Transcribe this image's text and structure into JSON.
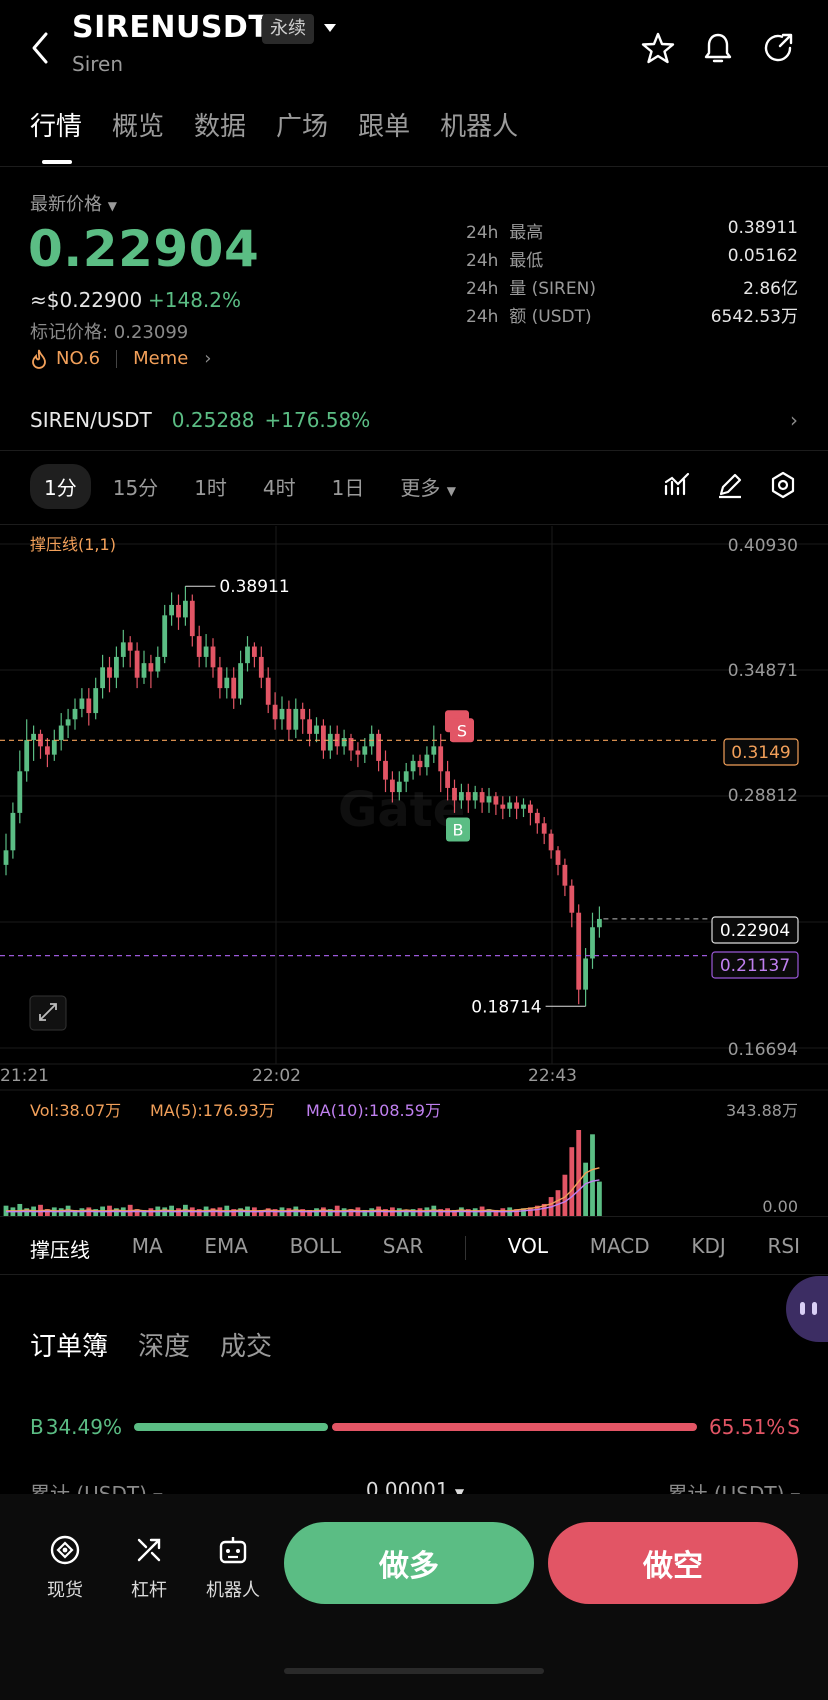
{
  "header": {
    "title": "SIRENUSDT",
    "contract_tag": "永续",
    "subtitle": "Siren",
    "icons": [
      "back-icon",
      "star-icon",
      "bell-icon",
      "share-icon"
    ]
  },
  "tabs": [
    "行情",
    "概览",
    "数据",
    "广场",
    "跟单",
    "机器人"
  ],
  "price": {
    "latest_label": "最新价格",
    "last": "0.22904",
    "usd": "≈$0.22900",
    "change": "+148.2%",
    "mark": "标记价格: 0.23099",
    "rank": "NO.6",
    "sector": "Meme"
  },
  "stats": [
    {
      "period": "24h",
      "label": "最高",
      "value": "0.38911"
    },
    {
      "period": "24h",
      "label": "最低",
      "value": "0.05162"
    },
    {
      "period": "24h",
      "label": "量 (SIREN)",
      "value": "2.86亿"
    },
    {
      "period": "24h",
      "label": "额 (USDT)",
      "value": "6542.53万"
    }
  ],
  "spot": {
    "pair": "SIREN/USDT",
    "price": "0.25288",
    "change": "+176.58%"
  },
  "intervals": [
    "1分",
    "15分",
    "1时",
    "4时",
    "1日",
    "更多"
  ],
  "active_interval": "1分",
  "chart_data": {
    "type": "candlestick",
    "indicator_label": "撑压线(1,1)",
    "y_ticks": [
      "0.40930",
      "0.34871",
      "0.28812",
      "0.16694"
    ],
    "x_ticks": [
      "21:21",
      "22:02",
      "22:43"
    ],
    "ylim": [
      0.16694,
      0.4093
    ],
    "high_label": "0.38911",
    "low_label": "0.18714",
    "resistance": "0.3149",
    "last_price_tag": "0.22904",
    "support": "0.21137",
    "markers": [
      "S",
      "B"
    ],
    "candles": [
      [
        0.255,
        0.262,
        0.25,
        0.27
      ],
      [
        0.262,
        0.28,
        0.258,
        0.285
      ],
      [
        0.28,
        0.3,
        0.275,
        0.31
      ],
      [
        0.3,
        0.315,
        0.295,
        0.325
      ],
      [
        0.315,
        0.318,
        0.305,
        0.322
      ],
      [
        0.318,
        0.312,
        0.306,
        0.32
      ],
      [
        0.312,
        0.308,
        0.302,
        0.316
      ],
      [
        0.308,
        0.315,
        0.305,
        0.32
      ],
      [
        0.315,
        0.322,
        0.31,
        0.328
      ],
      [
        0.322,
        0.325,
        0.316,
        0.33
      ],
      [
        0.325,
        0.33,
        0.32,
        0.335
      ],
      [
        0.33,
        0.335,
        0.326,
        0.34
      ],
      [
        0.335,
        0.328,
        0.322,
        0.34
      ],
      [
        0.328,
        0.34,
        0.325,
        0.345
      ],
      [
        0.34,
        0.35,
        0.335,
        0.356
      ],
      [
        0.35,
        0.345,
        0.338,
        0.355
      ],
      [
        0.345,
        0.355,
        0.34,
        0.36
      ],
      [
        0.355,
        0.362,
        0.35,
        0.368
      ],
      [
        0.362,
        0.358,
        0.35,
        0.365
      ],
      [
        0.358,
        0.345,
        0.34,
        0.362
      ],
      [
        0.345,
        0.352,
        0.342,
        0.358
      ],
      [
        0.352,
        0.348,
        0.34,
        0.356
      ],
      [
        0.348,
        0.355,
        0.345,
        0.36
      ],
      [
        0.355,
        0.375,
        0.352,
        0.38
      ],
      [
        0.375,
        0.38,
        0.37,
        0.386
      ],
      [
        0.38,
        0.374,
        0.368,
        0.385
      ],
      [
        0.374,
        0.382,
        0.37,
        0.389
      ],
      [
        0.382,
        0.365,
        0.36,
        0.385
      ],
      [
        0.365,
        0.355,
        0.35,
        0.37
      ],
      [
        0.355,
        0.36,
        0.35,
        0.366
      ],
      [
        0.36,
        0.35,
        0.345,
        0.364
      ],
      [
        0.35,
        0.34,
        0.335,
        0.355
      ],
      [
        0.34,
        0.345,
        0.335,
        0.35
      ],
      [
        0.345,
        0.335,
        0.33,
        0.35
      ],
      [
        0.335,
        0.352,
        0.332,
        0.358
      ],
      [
        0.352,
        0.36,
        0.348,
        0.365
      ],
      [
        0.36,
        0.355,
        0.35,
        0.362
      ],
      [
        0.355,
        0.345,
        0.34,
        0.36
      ],
      [
        0.345,
        0.332,
        0.328,
        0.35
      ],
      [
        0.332,
        0.325,
        0.32,
        0.338
      ],
      [
        0.325,
        0.33,
        0.32,
        0.336
      ],
      [
        0.33,
        0.32,
        0.315,
        0.334
      ],
      [
        0.32,
        0.33,
        0.316,
        0.335
      ],
      [
        0.33,
        0.325,
        0.318,
        0.333
      ],
      [
        0.325,
        0.318,
        0.312,
        0.33
      ],
      [
        0.318,
        0.322,
        0.314,
        0.326
      ],
      [
        0.322,
        0.31,
        0.306,
        0.325
      ],
      [
        0.31,
        0.318,
        0.306,
        0.322
      ],
      [
        0.318,
        0.312,
        0.308,
        0.322
      ],
      [
        0.312,
        0.316,
        0.308,
        0.32
      ],
      [
        0.316,
        0.31,
        0.305,
        0.318
      ],
      [
        0.31,
        0.308,
        0.302,
        0.314
      ],
      [
        0.308,
        0.312,
        0.304,
        0.316
      ],
      [
        0.312,
        0.318,
        0.308,
        0.322
      ],
      [
        0.318,
        0.305,
        0.3,
        0.32
      ],
      [
        0.305,
        0.296,
        0.29,
        0.31
      ],
      [
        0.296,
        0.29,
        0.285,
        0.3
      ],
      [
        0.29,
        0.295,
        0.286,
        0.3
      ],
      [
        0.295,
        0.3,
        0.29,
        0.304
      ],
      [
        0.3,
        0.305,
        0.296,
        0.308
      ],
      [
        0.305,
        0.302,
        0.298,
        0.308
      ],
      [
        0.302,
        0.308,
        0.298,
        0.312
      ],
      [
        0.308,
        0.312,
        0.304,
        0.322
      ],
      [
        0.312,
        0.3,
        0.29,
        0.318
      ],
      [
        0.3,
        0.292,
        0.286,
        0.305
      ],
      [
        0.292,
        0.286,
        0.28,
        0.296
      ],
      [
        0.286,
        0.29,
        0.282,
        0.294
      ],
      [
        0.29,
        0.286,
        0.28,
        0.294
      ],
      [
        0.286,
        0.29,
        0.282,
        0.293
      ],
      [
        0.29,
        0.285,
        0.28,
        0.292
      ],
      [
        0.285,
        0.288,
        0.28,
        0.292
      ],
      [
        0.288,
        0.284,
        0.279,
        0.29
      ],
      [
        0.284,
        0.282,
        0.277,
        0.288
      ],
      [
        0.282,
        0.285,
        0.278,
        0.288
      ],
      [
        0.285,
        0.282,
        0.277,
        0.288
      ],
      [
        0.282,
        0.284,
        0.278,
        0.287
      ],
      [
        0.284,
        0.28,
        0.274,
        0.286
      ],
      [
        0.28,
        0.275,
        0.27,
        0.282
      ],
      [
        0.275,
        0.27,
        0.265,
        0.278
      ],
      [
        0.27,
        0.262,
        0.258,
        0.272
      ],
      [
        0.262,
        0.255,
        0.25,
        0.264
      ],
      [
        0.255,
        0.245,
        0.24,
        0.258
      ],
      [
        0.245,
        0.232,
        0.225,
        0.248
      ],
      [
        0.232,
        0.195,
        0.188,
        0.236
      ],
      [
        0.195,
        0.21,
        0.187,
        0.215
      ],
      [
        0.21,
        0.225,
        0.205,
        0.232
      ],
      [
        0.225,
        0.229,
        0.22,
        0.235
      ]
    ]
  },
  "volume": {
    "vol": "Vol:38.07万",
    "ma5": "MA(5):176.93万",
    "ma10": "MA(10):108.59万",
    "top": "343.88万",
    "bottom": "0.00",
    "values": [
      12,
      10,
      14,
      9,
      11,
      13,
      8,
      10,
      9,
      12,
      7,
      9,
      10,
      8,
      11,
      12,
      9,
      10,
      13,
      8,
      7,
      9,
      11,
      10,
      12,
      9,
      13,
      10,
      8,
      11,
      9,
      10,
      12,
      8,
      9,
      11,
      10,
      7,
      9,
      8,
      10,
      9,
      11,
      8,
      7,
      9,
      10,
      8,
      12,
      9,
      8,
      10,
      7,
      9,
      11,
      8,
      10,
      9,
      7,
      8,
      9,
      10,
      12,
      8,
      9,
      7,
      10,
      8,
      9,
      11,
      8,
      7,
      9,
      10,
      8,
      9,
      10,
      12,
      14,
      22,
      30,
      48,
      80,
      100,
      62,
      95,
      40
    ],
    "ma5_curve": [
      6,
      6,
      6,
      7,
      6,
      6,
      7,
      6,
      6,
      7,
      6,
      6,
      7,
      6,
      6,
      6,
      7,
      6,
      6,
      7,
      6,
      6,
      6,
      7,
      6,
      6,
      7,
      6,
      6,
      6,
      7,
      6,
      6,
      6,
      7,
      6,
      6,
      6,
      7,
      6,
      6,
      6,
      7,
      6,
      6,
      6,
      7,
      6,
      6,
      6,
      7,
      6,
      6,
      6,
      7,
      6,
      6,
      6,
      7,
      6,
      6,
      6,
      7,
      6,
      6,
      6,
      7,
      6,
      6,
      6,
      7,
      6,
      6,
      6,
      7,
      8,
      9,
      10,
      12,
      14,
      18,
      22,
      30,
      40,
      50,
      54,
      56
    ]
  },
  "indicators": [
    "撑压线",
    "MA",
    "EMA",
    "BOLL",
    "SAR",
    "VOL",
    "MACD",
    "KDJ",
    "RSI"
  ],
  "active_indicators": [
    "撑压线",
    "VOL"
  ],
  "orderbook": {
    "tabs": [
      "订单簿",
      "深度",
      "成交"
    ],
    "buy_label": "B",
    "buy_pct": "34.49%",
    "sell_pct": "65.51%",
    "sell_label": "S",
    "buy_ratio": 0.3449,
    "col_left": "累计 (USDT)",
    "col_mid": "0.00001",
    "col_right": "累计 (USDT)"
  },
  "bottom": {
    "spot": "现货",
    "leverage": "杠杆",
    "bot": "机器人",
    "long": "做多",
    "short": "做空"
  },
  "colors": {
    "up": "#5bbd84",
    "down": "#e25565",
    "resistance": "#f2a05a",
    "support": "#9b59d8"
  }
}
